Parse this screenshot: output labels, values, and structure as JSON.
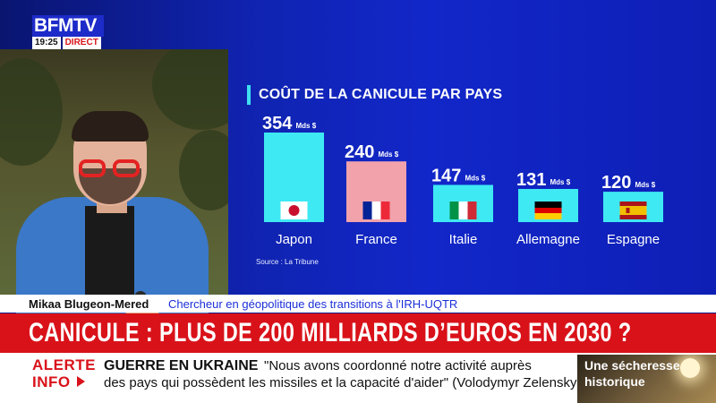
{
  "channel": {
    "logo_text": "BFMTV",
    "time": "19:25",
    "live_label": "DIRECT"
  },
  "chart": {
    "source_text": "Source :   La Tribune"
  },
  "chart_data": {
    "type": "bar",
    "title": "COÛT DE LA CANICULE PAR PAYS",
    "categories": [
      "Japon",
      "France",
      "Italie",
      "Allemagne",
      "Espagne"
    ],
    "values": [
      354,
      240,
      147,
      131,
      120
    ],
    "unit": "Mds $",
    "flags": [
      "japan-flag-icon",
      "france-flag-icon",
      "italy-flag-icon",
      "germany-flag-icon",
      "spain-flag-icon"
    ],
    "bar_colors": [
      "#3fe9f3",
      "#f1a2ab",
      "#3fe9f3",
      "#3fe9f3",
      "#3fe9f3"
    ],
    "xlabel": "",
    "ylabel": "",
    "grid": false
  },
  "guest": {
    "name": "Mikaa Blugeon-Mered",
    "role": "Chercheur en géopolitique des transitions à l'IRH-UQTR"
  },
  "headline": {
    "text": "CANICULE : PLUS DE 200 MILLIARDS D’EUROS EN 2030 ?"
  },
  "ticker": {
    "alert_line1": "ALERTE",
    "alert_line2": "INFO",
    "topic": "GUERRE EN UKRAINE",
    "quote_line1": "\"Nous avons coordonné notre activité auprès",
    "quote_line2": "des pays qui possèdent les missiles et la capacité d'aider\" (Volodymyr Zelensky)"
  },
  "teaser": {
    "line1": "Une sécheresse",
    "line2": "historique"
  },
  "colors": {
    "brand_blue": "#1d2bc9",
    "alert_red": "#d9121a",
    "accent_cyan": "#3fe9f3",
    "accent_pink": "#f1a2ab"
  }
}
